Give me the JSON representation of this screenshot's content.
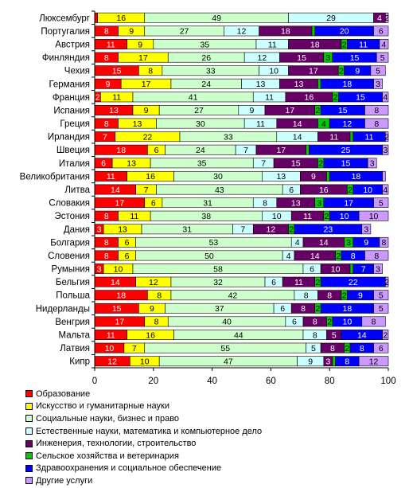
{
  "chart_data": {
    "type": "bar",
    "orientation": "horizontal",
    "stacked": true,
    "xlim": [
      0,
      100
    ],
    "xticks": [
      0,
      20,
      40,
      60,
      80,
      100
    ],
    "grid": false,
    "legend_position": "bottom",
    "categories": [
      "Люксембург",
      "Португалия",
      "Австрия",
      "Финляндия",
      "Чехия",
      "Германия",
      "Франция",
      "Испания",
      "Греция",
      "Ирландия",
      "Швеция",
      "Италия",
      "Великобритания",
      "Литва",
      "Словакия",
      "Эстония",
      "Дания",
      "Болгария",
      "Словения",
      "Румыния",
      "Бельгия",
      "Польша",
      "Нидерланды",
      "Венгрия",
      "Мальта",
      "Латвия",
      "Кипр"
    ],
    "series": [
      {
        "name": "Образование",
        "color": "#ff0000",
        "values": [
          1,
          8,
          11,
          8,
          15,
          9,
          2,
          13,
          8,
          7,
          18,
          6,
          11,
          14,
          17,
          8,
          3,
          8,
          8,
          3,
          14,
          18,
          15,
          17,
          11,
          10,
          12
        ]
      },
      {
        "name": "Искусство и гуманитарные науки",
        "color": "#ffff00",
        "values": [
          16,
          9,
          9,
          17,
          8,
          17,
          11,
          9,
          13,
          22,
          6,
          13,
          16,
          7,
          6,
          11,
          13,
          6,
          6,
          10,
          12,
          8,
          9,
          8,
          16,
          7,
          10
        ]
      },
      {
        "name": "Социальные науки, бизнес и право",
        "color": "#ccffcc",
        "values": [
          49,
          27,
          35,
          26,
          33,
          24,
          41,
          27,
          30,
          33,
          24,
          35,
          30,
          43,
          31,
          38,
          31,
          53,
          50,
          58,
          32,
          42,
          37,
          40,
          44,
          55,
          47
        ]
      },
      {
        "name": "Естественные науки, математика и компьютерное дело",
        "color": "#ccffff",
        "values": [
          29,
          12,
          11,
          12,
          10,
          13,
          11,
          9,
          11,
          14,
          7,
          7,
          13,
          6,
          8,
          10,
          7,
          4,
          4,
          6,
          6,
          8,
          6,
          6,
          8,
          5,
          9
        ]
      },
      {
        "name": "Инженерия, технологии, строительство",
        "color": "#660066",
        "values": [
          4,
          18,
          18,
          15,
          17,
          13,
          16,
          17,
          14,
          11,
          17,
          15,
          9,
          16,
          13,
          11,
          12,
          14,
          14,
          10,
          11,
          8,
          8,
          8,
          5,
          8,
          3
        ]
      },
      {
        "name": "Сельское хозяйства и ветеринария",
        "color": "#00cc00",
        "values": [
          0,
          1,
          2,
          3,
          2,
          1,
          2,
          2,
          4,
          1,
          1,
          2,
          1,
          2,
          3,
          2,
          2,
          3,
          2,
          1,
          2,
          2,
          2,
          2,
          0,
          2,
          1
        ]
      },
      {
        "name": "Здравоохранения и социальное обеспечение",
        "color": "#0000ff",
        "values": [
          0,
          20,
          11,
          15,
          9,
          18,
          15,
          15,
          12,
          11,
          25,
          15,
          18,
          10,
          17,
          10,
          23,
          9,
          8,
          7,
          22,
          9,
          18,
          10,
          14,
          8,
          8
        ]
      },
      {
        "name": "Другие услуги",
        "color": "#cc99ff",
        "values": [
          2,
          6,
          4,
          5,
          5,
          3,
          4,
          8,
          8,
          2,
          3,
          3,
          1,
          4,
          5,
          10,
          3,
          8,
          8,
          3,
          2,
          5,
          5,
          8,
          2,
          6,
          12
        ]
      }
    ]
  }
}
